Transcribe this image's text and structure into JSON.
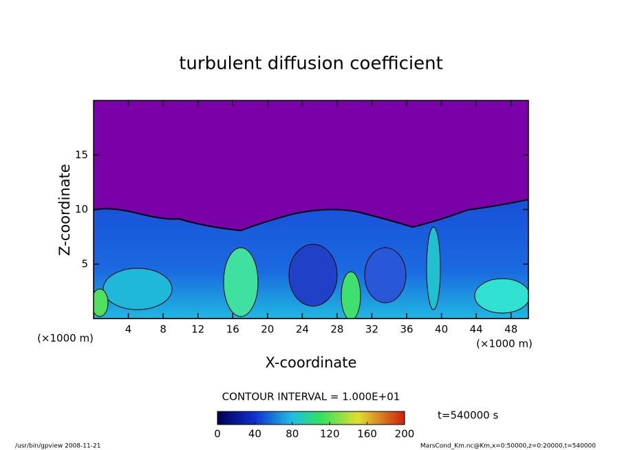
{
  "chart_data": {
    "type": "contour",
    "title": "turbulent diffusion coefficient",
    "xlabel": "X-coordinate",
    "ylabel": "Z-coordinate",
    "unit_label": "(×1000 m)",
    "xlim": [
      0,
      50
    ],
    "xticks": [
      4,
      8,
      12,
      16,
      20,
      24,
      28,
      32,
      36,
      40,
      44,
      48
    ],
    "ylim": [
      0,
      20
    ],
    "yticks": [
      5,
      10,
      15
    ],
    "colorbar": {
      "lim": [
        0,
        200
      ],
      "ticks": [
        0,
        40,
        80,
        120,
        160,
        200
      ]
    },
    "contour_interval": "CONTOUR INTERVAL = 1.000E+01",
    "time_label": "t=540000 s",
    "footer_left": "/usr/bin/gpview   2008-11-21",
    "footer_right": "MarsCond_Km.nc@Km,x=0:50000,z=0:20000,t=540000"
  }
}
